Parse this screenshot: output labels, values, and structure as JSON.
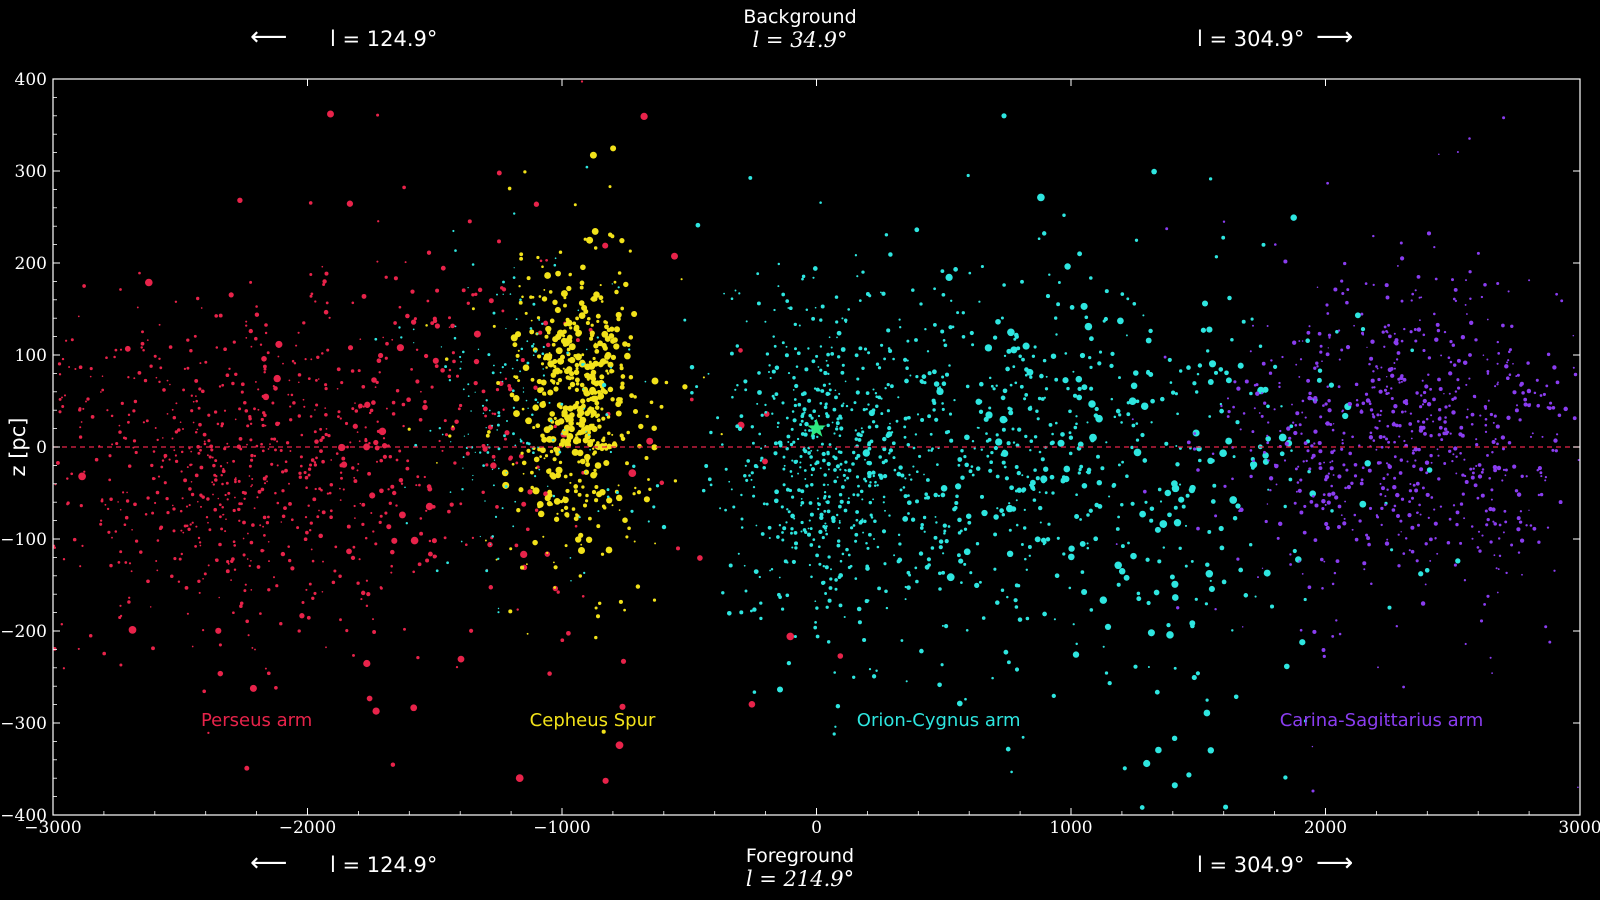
{
  "annotations": {
    "top": {
      "center_label": "Background",
      "center_l": "l = 34.9°",
      "left_l": "l = 124.9°",
      "right_l": "l = 304.9°",
      "left_arrow": "⟵",
      "right_arrow": "⟶"
    },
    "bottom": {
      "center_label": "Foreground",
      "center_l": "l = 214.9°",
      "left_l": "l = 124.9°",
      "right_l": "l = 304.9°",
      "left_arrow": "⟵",
      "right_arrow": "⟶"
    }
  },
  "colors": {
    "background": "#000000",
    "perseus": "#e8234a",
    "cepheus": "#f2e21a",
    "orion": "#2ee6e0",
    "carina": "#8a3df0",
    "sun_star": "#2ee880",
    "zero_line": "#e8234a",
    "axis": "#ffffff"
  },
  "chart_data": {
    "type": "scatter",
    "xlabel": "",
    "ylabel": "z [pc]",
    "xlim": [
      -3000,
      3000
    ],
    "ylim": [
      -400,
      400
    ],
    "xticks": [
      -3000,
      -2000,
      -1000,
      0,
      1000,
      2000,
      3000
    ],
    "yticks": [
      -400,
      -300,
      -200,
      -100,
      0,
      100,
      200,
      300,
      400
    ],
    "xtick_labels": [
      "−3000",
      "−2000",
      "−1000",
      "0",
      "1000",
      "2000",
      "3000"
    ],
    "ytick_labels": [
      "−400",
      "−300",
      "−200",
      "−100",
      "0",
      "100",
      "200",
      "300",
      "400"
    ],
    "reference_line": {
      "y": 0,
      "style": "dashed"
    },
    "sun_marker": {
      "x": 0,
      "y": 20,
      "shape": "star"
    },
    "series": [
      {
        "name": "Perseus arm",
        "color": "#e8234a",
        "label_x": -2200,
        "label_y": -303,
        "clusters": [
          {
            "cx": -2300,
            "cy": -20,
            "sx": 420,
            "sy": 95,
            "n": 700,
            "r": 1.3
          },
          {
            "cx": -1500,
            "cy": 20,
            "sx": 350,
            "sy": 110,
            "n": 160,
            "r": 1.8
          },
          {
            "cx": -1300,
            "cy": 0,
            "sx": 650,
            "sy": 180,
            "n": 90,
            "r": 2.6
          }
        ]
      },
      {
        "name": "Cepheus Spur",
        "color": "#f2e21a",
        "label_x": -880,
        "label_y": -303,
        "clusters": [
          {
            "cx": -930,
            "cy": 50,
            "sx": 110,
            "sy": 70,
            "n": 420,
            "r": 2.4
          },
          {
            "cx": -950,
            "cy": 20,
            "sx": 220,
            "sy": 110,
            "n": 140,
            "r": 1.4
          }
        ]
      },
      {
        "name": "Orion-Cygnus arm",
        "color": "#2ee6e0",
        "label_x": 480,
        "label_y": -303,
        "clusters": [
          {
            "cx": 0,
            "cy": 0,
            "sx": 180,
            "sy": 90,
            "n": 420,
            "r": 1.4
          },
          {
            "cx": 600,
            "cy": -20,
            "sx": 520,
            "sy": 110,
            "n": 600,
            "r": 1.6
          },
          {
            "cx": 1200,
            "cy": -30,
            "sx": 520,
            "sy": 130,
            "n": 260,
            "r": 2.6
          },
          {
            "cx": -1200,
            "cy": 30,
            "sx": 200,
            "sy": 90,
            "n": 180,
            "r": 1.0
          }
        ]
      },
      {
        "name": "Carina-Sagittarius arm",
        "color": "#8a3df0",
        "label_x": 2220,
        "label_y": -303,
        "clusters": [
          {
            "cx": 2350,
            "cy": 10,
            "sx": 360,
            "sy": 80,
            "n": 650,
            "r": 1.5
          },
          {
            "cx": 2300,
            "cy": 0,
            "sx": 480,
            "sy": 150,
            "n": 140,
            "r": 1.1
          }
        ]
      }
    ]
  }
}
